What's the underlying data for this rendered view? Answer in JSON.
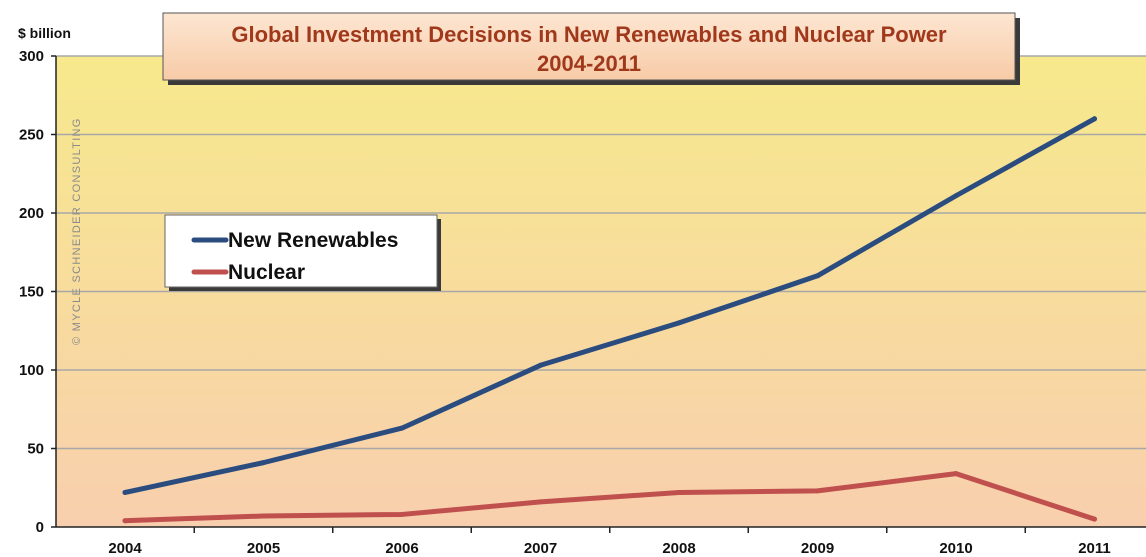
{
  "chart_data": {
    "type": "line",
    "title": "Global Investment Decisions in New Renewables and Nuclear Power",
    "subtitle": "2004-2011",
    "ylabel": "$ billion",
    "xlabel": "",
    "categories": [
      "2004",
      "2005",
      "2006",
      "2007",
      "2008",
      "2009",
      "2010",
      "2011"
    ],
    "ylim": [
      0,
      300
    ],
    "yticks": [
      0,
      50,
      100,
      150,
      200,
      250,
      300
    ],
    "grid": true,
    "legend_position": "upper-left",
    "series": [
      {
        "name": "New Renewables",
        "color": "#2b4c7e",
        "values": [
          22,
          41,
          63,
          103,
          130,
          160,
          211,
          260
        ]
      },
      {
        "name": "Nuclear",
        "color": "#c0504d",
        "values": [
          4,
          7,
          8,
          16,
          22,
          23,
          34,
          5
        ]
      }
    ],
    "watermark": "© MYCLE SCHNEIDER CONSULTING"
  }
}
